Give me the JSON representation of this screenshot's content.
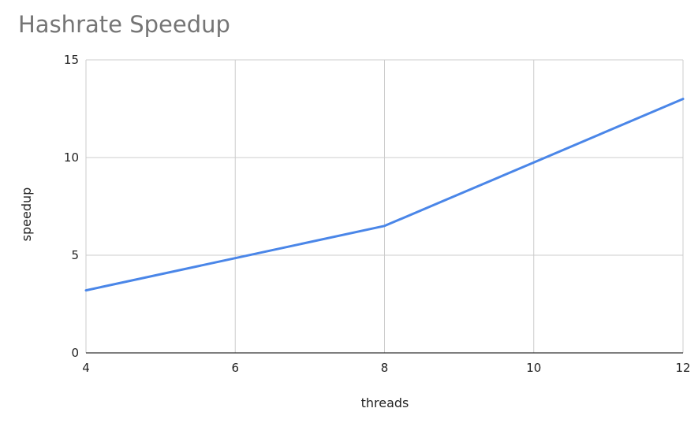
{
  "chart_data": {
    "type": "line",
    "title": "Hashrate Speedup",
    "xlabel": "threads",
    "ylabel": "speedup",
    "xlim": [
      4,
      12
    ],
    "ylim": [
      0,
      15
    ],
    "xticks": [
      4,
      6,
      8,
      10,
      12
    ],
    "yticks": [
      0,
      5,
      10,
      15
    ],
    "grid": true,
    "series": [
      {
        "x": [
          4,
          6,
          8,
          10,
          12
        ],
        "y": [
          3.2,
          4.85,
          6.5,
          9.75,
          13.0
        ],
        "color": "#4a86e8"
      }
    ]
  }
}
